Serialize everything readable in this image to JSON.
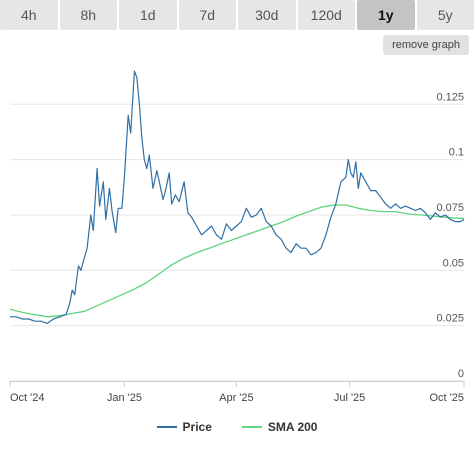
{
  "tabs": [
    {
      "label": "4h",
      "active": false
    },
    {
      "label": "8h",
      "active": false
    },
    {
      "label": "1d",
      "active": false
    },
    {
      "label": "7d",
      "active": false
    },
    {
      "label": "30d",
      "active": false
    },
    {
      "label": "120d",
      "active": false
    },
    {
      "label": "1y",
      "active": true
    },
    {
      "label": "5y",
      "active": false
    }
  ],
  "remove_button": "remove graph",
  "legend": [
    {
      "label": "Price",
      "color": "#2f6fa5"
    },
    {
      "label": "SMA 200",
      "color": "#5fd37f"
    }
  ],
  "chart_data": {
    "type": "line",
    "ylim": [
      0,
      0.145
    ],
    "y_ticks": [
      {
        "label": "0",
        "value": 0
      },
      {
        "label": "0.025",
        "value": 0.025
      },
      {
        "label": "0.05",
        "value": 0.05
      },
      {
        "label": "0.075",
        "value": 0.075
      },
      {
        "label": "0.1",
        "value": 0.1
      },
      {
        "label": "0.125",
        "value": 0.125
      }
    ],
    "x_ticks": [
      {
        "label": "Oct '24",
        "value": 0
      },
      {
        "label": "Jan '25",
        "value": 92
      },
      {
        "label": "Apr '25",
        "value": 182
      },
      {
        "label": "Jul '25",
        "value": 273
      },
      {
        "label": "Oct '25",
        "value": 365
      }
    ],
    "xlim": [
      0,
      365
    ],
    "grid": true,
    "series": [
      {
        "name": "Price",
        "color": "#2f6fa5",
        "x": [
          0,
          5,
          10,
          15,
          20,
          25,
          30,
          35,
          40,
          45,
          48,
          50,
          52,
          55,
          57,
          60,
          62,
          65,
          67,
          70,
          72,
          75,
          77,
          80,
          82,
          85,
          87,
          90,
          92,
          95,
          97,
          100,
          102,
          104,
          106,
          108,
          110,
          112,
          115,
          118,
          120,
          123,
          125,
          128,
          130,
          133,
          136,
          140,
          143,
          146,
          150,
          154,
          158,
          162,
          166,
          170,
          174,
          178,
          182,
          186,
          190,
          194,
          198,
          202,
          206,
          210,
          214,
          218,
          222,
          226,
          230,
          234,
          238,
          242,
          246,
          250,
          254,
          258,
          262,
          266,
          270,
          272,
          274,
          276,
          278,
          280,
          282,
          284,
          286,
          290,
          294,
          298,
          302,
          306,
          310,
          314,
          318,
          322,
          326,
          330,
          334,
          338,
          342,
          346,
          350,
          354,
          358,
          362,
          365
        ],
        "y": [
          0.029,
          0.029,
          0.028,
          0.028,
          0.027,
          0.027,
          0.026,
          0.028,
          0.029,
          0.03,
          0.035,
          0.041,
          0.039,
          0.052,
          0.05,
          0.056,
          0.06,
          0.075,
          0.068,
          0.096,
          0.079,
          0.09,
          0.073,
          0.087,
          0.077,
          0.067,
          0.078,
          0.078,
          0.092,
          0.12,
          0.112,
          0.14,
          0.137,
          0.125,
          0.11,
          0.1,
          0.096,
          0.102,
          0.087,
          0.095,
          0.09,
          0.082,
          0.086,
          0.094,
          0.08,
          0.084,
          0.081,
          0.09,
          0.076,
          0.074,
          0.07,
          0.066,
          0.068,
          0.07,
          0.066,
          0.064,
          0.071,
          0.068,
          0.07,
          0.072,
          0.078,
          0.074,
          0.075,
          0.078,
          0.072,
          0.07,
          0.066,
          0.064,
          0.06,
          0.058,
          0.062,
          0.06,
          0.06,
          0.057,
          0.058,
          0.06,
          0.066,
          0.074,
          0.08,
          0.09,
          0.092,
          0.1,
          0.094,
          0.092,
          0.099,
          0.087,
          0.094,
          0.092,
          0.09,
          0.086,
          0.086,
          0.083,
          0.08,
          0.078,
          0.08,
          0.078,
          0.079,
          0.078,
          0.077,
          0.078,
          0.076,
          0.073,
          0.076,
          0.074,
          0.075,
          0.073,
          0.072,
          0.072,
          0.073
        ]
      },
      {
        "name": "SMA 200",
        "color": "#5fd37f",
        "x": [
          0,
          10,
          20,
          30,
          40,
          50,
          60,
          70,
          80,
          90,
          100,
          110,
          120,
          130,
          140,
          150,
          160,
          170,
          180,
          190,
          200,
          210,
          220,
          230,
          240,
          250,
          260,
          270,
          280,
          290,
          300,
          310,
          320,
          330,
          340,
          350,
          360,
          365
        ],
        "y": [
          0.0325,
          0.031,
          0.03,
          0.029,
          0.0295,
          0.0305,
          0.0315,
          0.034,
          0.0365,
          0.039,
          0.0415,
          0.0445,
          0.0485,
          0.0525,
          0.0555,
          0.058,
          0.06,
          0.062,
          0.064,
          0.066,
          0.068,
          0.07,
          0.072,
          0.0745,
          0.0765,
          0.0785,
          0.0795,
          0.0795,
          0.078,
          0.077,
          0.0765,
          0.0765,
          0.0755,
          0.075,
          0.0745,
          0.074,
          0.0735,
          0.0735
        ]
      }
    ]
  }
}
